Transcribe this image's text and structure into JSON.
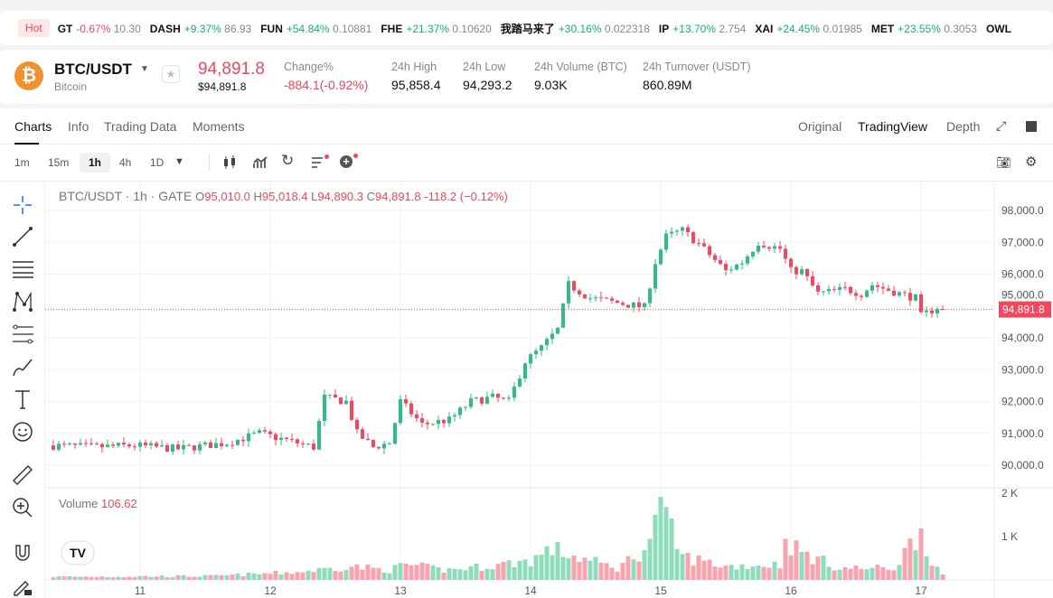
{
  "ticker": {
    "hot": "Hot",
    "items": [
      {
        "sym": "GT",
        "chg": "-0.67%",
        "price": "10.30",
        "dir": "dn"
      },
      {
        "sym": "DASH",
        "chg": "+9.37%",
        "price": "86.93",
        "dir": "up"
      },
      {
        "sym": "FUN",
        "chg": "+54.84%",
        "price": "0.10881",
        "dir": "up"
      },
      {
        "sym": "FHE",
        "chg": "+21.37%",
        "price": "0.10620",
        "dir": "up"
      },
      {
        "sym": "我踏马来了",
        "chg": "+30.16%",
        "price": "0.022318",
        "dir": "up"
      },
      {
        "sym": "IP",
        "chg": "+13.70%",
        "price": "2.754",
        "dir": "up"
      },
      {
        "sym": "XAI",
        "chg": "+24.45%",
        "price": "0.01985",
        "dir": "up"
      },
      {
        "sym": "MET",
        "chg": "+23.55%",
        "price": "0.3053",
        "dir": "up"
      },
      {
        "sym": "OWL",
        "chg": "",
        "price": "",
        "dir": "up"
      }
    ]
  },
  "header": {
    "coin_symbol": "₿",
    "pair": "BTC/USDT",
    "name": "Bitcoin",
    "price": "94,891.8",
    "usd_price": "$94,891.8",
    "stats": [
      {
        "label": "Change%",
        "value": "-884.1(-0.92%)",
        "dir": "dn"
      },
      {
        "label": "24h High",
        "value": "95,858.4"
      },
      {
        "label": "24h Low",
        "value": "94,293.2"
      },
      {
        "label": "24h Volume (BTC)",
        "value": "9.03K"
      },
      {
        "label": "24h Turnover (USDT)",
        "value": "860.89M"
      }
    ]
  },
  "tabs": {
    "left": [
      "Charts",
      "Info",
      "Trading Data",
      "Moments"
    ],
    "right": [
      "Original",
      "TradingView",
      "Depth"
    ]
  },
  "toolbar": {
    "timeframes": [
      "1m",
      "15m",
      "1h",
      "4h",
      "1D"
    ],
    "active": "1h"
  },
  "legend": {
    "title": "BTC/USDT · 1h · GATE",
    "o": "95,010.0",
    "h": "95,018.4",
    "l": "94,890.3",
    "c": "94,891.8",
    "chg": "-118.2 (−0.12%)",
    "o_l": "O",
    "h_l": "H",
    "l_l": "L",
    "c_l": "C"
  },
  "volume": {
    "label": "Volume",
    "value": "106.62"
  },
  "chart_data": {
    "type": "candlestick",
    "title": "BTC/USDT · 1h · GATE",
    "y_ticks": [
      90000,
      91000,
      92000,
      93000,
      94000,
      95000,
      96000,
      97000,
      98000
    ],
    "y_tick_labels": [
      "90,000.0",
      "91,000.0",
      "92,000.0",
      "93,000.0",
      "94,000.0",
      "95,000.0",
      "96,000.0",
      "97,000.0",
      "98,000.0"
    ],
    "ylim": [
      89600,
      98600
    ],
    "x_tick_labels": [
      "11",
      "12",
      "13",
      "14",
      "15",
      "16",
      "17"
    ],
    "last_price": 94891.8,
    "last_price_label": "94,891.8",
    "close_keypoints_hourly": [
      [
        0,
        90620
      ],
      [
        7,
        90570
      ],
      [
        15,
        90620
      ],
      [
        23,
        90510
      ],
      [
        32,
        90700
      ],
      [
        38,
        91000
      ],
      [
        45,
        90700
      ],
      [
        48,
        90570
      ],
      [
        50,
        92130
      ],
      [
        54,
        92000
      ],
      [
        56,
        91000
      ],
      [
        59,
        90570
      ],
      [
        62,
        90700
      ],
      [
        64,
        92000
      ],
      [
        68,
        91280
      ],
      [
        73,
        91420
      ],
      [
        77,
        92000
      ],
      [
        81,
        92130
      ],
      [
        84,
        92000
      ],
      [
        87,
        93260
      ],
      [
        90,
        93690
      ],
      [
        93,
        94260
      ],
      [
        95,
        95670
      ],
      [
        99,
        95250
      ],
      [
        104,
        95100
      ],
      [
        109,
        94960
      ],
      [
        111,
        96380
      ],
      [
        113,
        97180
      ],
      [
        116,
        97380
      ],
      [
        119,
        96950
      ],
      [
        124,
        96100
      ],
      [
        127,
        96380
      ],
      [
        130,
        97000
      ],
      [
        134,
        96800
      ],
      [
        136,
        96100
      ],
      [
        138,
        96100
      ],
      [
        141,
        95390
      ],
      [
        146,
        95530
      ],
      [
        149,
        95390
      ],
      [
        151,
        95670
      ],
      [
        156,
        95390
      ],
      [
        159,
        95250
      ],
      [
        160,
        94680
      ],
      [
        163,
        94960
      ],
      [
        164,
        94892
      ]
    ],
    "volume_ticks": [
      "1 K",
      "2 K"
    ],
    "volume_keypoints_hourly": [
      [
        0,
        80
      ],
      [
        30,
        100
      ],
      [
        45,
        200
      ],
      [
        55,
        350
      ],
      [
        62,
        250
      ],
      [
        65,
        400
      ],
      [
        72,
        250
      ],
      [
        80,
        350
      ],
      [
        88,
        500
      ],
      [
        92,
        800
      ],
      [
        96,
        600
      ],
      [
        104,
        300
      ],
      [
        110,
        900
      ],
      [
        111,
        1900
      ],
      [
        113,
        1500
      ],
      [
        116,
        600
      ],
      [
        124,
        350
      ],
      [
        134,
        400
      ],
      [
        135,
        1000
      ],
      [
        138,
        700
      ],
      [
        145,
        300
      ],
      [
        155,
        300
      ],
      [
        160,
        1300
      ],
      [
        162,
        500
      ],
      [
        164,
        110
      ]
    ]
  }
}
